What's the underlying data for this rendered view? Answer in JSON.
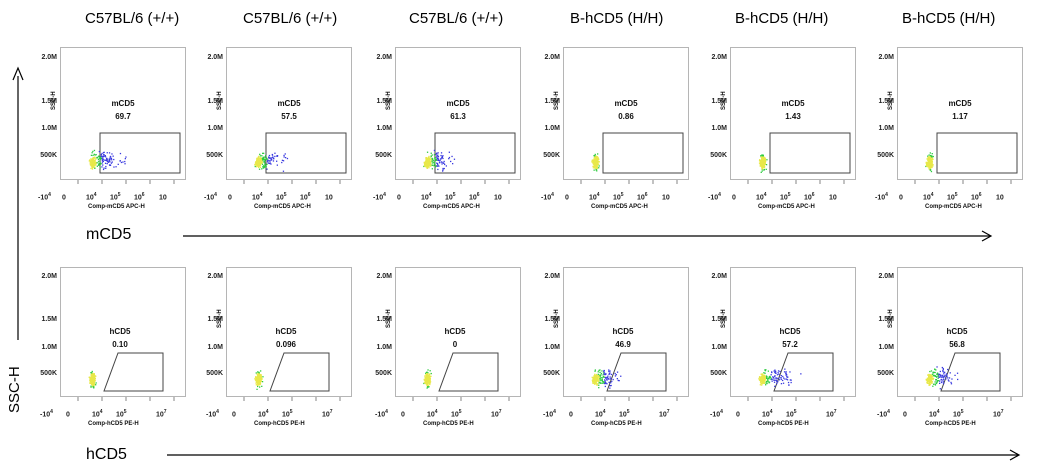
{
  "column_titles": [
    "C57BL/6 (+/+)",
    "C57BL/6 (+/+)",
    "C57BL/6 (+/+)",
    "B-hCD5 (H/H)",
    "B-hCD5 (H/H)",
    "B-hCD5 (H/H)"
  ],
  "row_labels": {
    "top": "mCD5",
    "bottom": "hCD5"
  },
  "y_axis_label": "SSC-H",
  "colors": {
    "dots": "#3a3adf",
    "dense": "#2ecc40",
    "hot": "#e8e84a",
    "gate": "#444444",
    "arrow": "#000000"
  },
  "chart_data": [
    {
      "type": "scatter",
      "row": "mCD5",
      "ylabel": "SSC-H",
      "xlabel": "Comp-mCD5 APC-H",
      "y_ticks": [
        "500K",
        "1.0M",
        "1.5M",
        "2.0M"
      ],
      "x_ticks": [
        "-10",
        "0",
        "10",
        "10",
        "10",
        "10"
      ],
      "x_tick_exponents": [
        "4",
        "",
        "4",
        "5",
        "6",
        ""
      ],
      "gate": "mCD5",
      "panels": [
        {
          "sample": "C57BL/6 (+/+)",
          "gate_value": "69.7"
        },
        {
          "sample": "C57BL/6 (+/+)",
          "gate_value": "57.5"
        },
        {
          "sample": "C57BL/6 (+/+)",
          "gate_value": "61.3"
        },
        {
          "sample": "B-hCD5 (H/H)",
          "gate_value": "0.86"
        },
        {
          "sample": "B-hCD5 (H/H)",
          "gate_value": "1.43"
        },
        {
          "sample": "B-hCD5 (H/H)",
          "gate_value": "1.17"
        }
      ]
    },
    {
      "type": "scatter",
      "row": "hCD5",
      "ylabel": "SSC-H",
      "xlabel": "Comp-hCD5 PE-H",
      "y_ticks": [
        "500K",
        "1.0M",
        "1.5M",
        "2.0M"
      ],
      "x_ticks": [
        "-10",
        "0",
        "10",
        "10",
        "10"
      ],
      "x_tick_exponents": [
        "4",
        "",
        "4",
        "5",
        "7"
      ],
      "gate": "hCD5",
      "panels": [
        {
          "sample": "C57BL/6 (+/+)",
          "gate_value": "0.10"
        },
        {
          "sample": "C57BL/6 (+/+)",
          "gate_value": "0.096"
        },
        {
          "sample": "C57BL/6 (+/+)",
          "gate_value": "0"
        },
        {
          "sample": "B-hCD5 (H/H)",
          "gate_value": "46.9"
        },
        {
          "sample": "B-hCD5 (H/H)",
          "gate_value": "57.2"
        },
        {
          "sample": "B-hCD5 (H/H)",
          "gate_value": "56.8"
        }
      ]
    }
  ]
}
